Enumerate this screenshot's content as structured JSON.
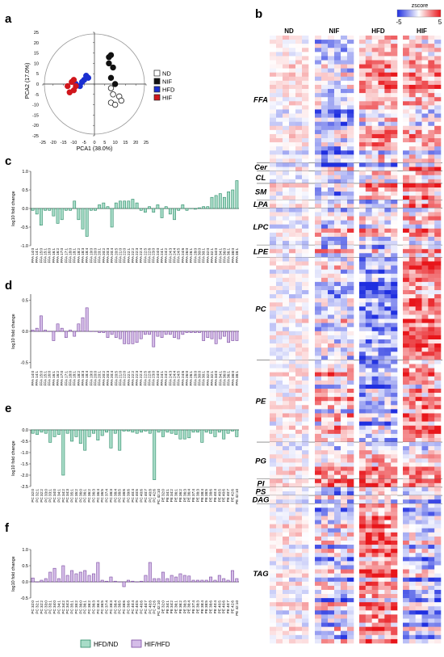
{
  "panel_letters": {
    "a": "a",
    "b": "b",
    "c": "c",
    "d": "d",
    "e": "e",
    "f": "f"
  },
  "colors": {
    "ND": "#ffffff",
    "NIF": "#111111",
    "HFD": "#1a2fd0",
    "HIF": "#d0161c",
    "green_fill": "#a8dcc8",
    "green_stroke": "#2a8a66",
    "purple_fill": "#d5bde8",
    "purple_stroke": "#7a4aa0",
    "heat_low": "#1f2fe0",
    "heat_mid": "#ffffff",
    "heat_high": "#e8161b"
  },
  "legend_bottom": {
    "green": "HFD/ND",
    "purple": "HIF/HFD"
  },
  "chart_data": [
    {
      "panel": "a",
      "type": "scatter",
      "xlabel": "PCA1 (38.0%)",
      "ylabel": "PCA2 (17.0%)",
      "xlim": [
        -25,
        25
      ],
      "ylim": [
        -25,
        25
      ],
      "xticks": [
        "-25",
        "-20",
        "-15",
        "-10",
        "-5",
        "0",
        "5",
        "10",
        "15",
        "20",
        "25"
      ],
      "yticks": [
        "25",
        "20",
        "15",
        "10",
        "5",
        "0",
        "-5",
        "-10",
        "-15",
        "-20",
        "-25"
      ],
      "legend": [
        "ND",
        "NIF",
        "HFD",
        "HIF"
      ],
      "series": [
        {
          "name": "ND",
          "points": [
            [
              8,
              -2
            ],
            [
              9,
              -5
            ],
            [
              12,
              -6
            ],
            [
              8,
              -9
            ],
            [
              10,
              -10
            ],
            [
              13,
              -8
            ]
          ]
        },
        {
          "name": "NIF",
          "points": [
            [
              7,
              13
            ],
            [
              8,
              14
            ],
            [
              7,
              10
            ],
            [
              9,
              8
            ],
            [
              8,
              3
            ],
            [
              10,
              0
            ]
          ]
        },
        {
          "name": "HFD",
          "points": [
            [
              -4,
              4
            ],
            [
              -5,
              2
            ],
            [
              -3,
              3
            ],
            [
              -7,
              -1
            ],
            [
              -6,
              1
            ],
            [
              -9,
              0
            ]
          ]
        },
        {
          "name": "HIF",
          "points": [
            [
              -13,
              -1
            ],
            [
              -11,
              1
            ],
            [
              -10,
              -3
            ],
            [
              -12,
              -4
            ],
            [
              -9,
              -1
            ],
            [
              -10,
              2
            ]
          ]
        }
      ]
    },
    {
      "panel": "b",
      "type": "heatmap",
      "title": "zscore",
      "scale_min": "-5",
      "scale_max": "5",
      "groups": [
        "ND",
        "NIF",
        "HFD",
        "HIF"
      ],
      "classes": [
        {
          "name": "FFA",
          "rows": 31
        },
        {
          "name": "Cer",
          "rows": 2
        },
        {
          "name": "CL",
          "rows": 3
        },
        {
          "name": "SM",
          "rows": 4
        },
        {
          "name": "LPA",
          "rows": 2
        },
        {
          "name": "LPC",
          "rows": 9
        },
        {
          "name": "LPE",
          "rows": 3
        },
        {
          "name": "PC",
          "rows": 25
        },
        {
          "name": "PE",
          "rows": 20
        },
        {
          "name": "PG",
          "rows": 9
        },
        {
          "name": "PI",
          "rows": 2
        },
        {
          "name": "PS",
          "rows": 2
        },
        {
          "name": "DAG",
          "rows": 2
        },
        {
          "name": "TAG",
          "rows": 34
        }
      ]
    },
    {
      "panel": "c",
      "type": "bar",
      "ylabel": "log10 fold change",
      "ylim": [
        -1.0,
        1.0
      ],
      "yticks": [
        "1.0",
        "0.5",
        "0.0",
        "-0.5",
        "-1.0"
      ],
      "categories": [
        "FFA 14:0",
        "FFA 14:1",
        "FFA 15:0",
        "FFA 15:1",
        "FFA 16:0",
        "FFA 16:1",
        "FFA 16:2",
        "FFA 17:0",
        "FFA 17:1",
        "FFA 18:0",
        "FFA 18:1",
        "FFA 18:2",
        "FFA 18:3",
        "FFA 18:4",
        "FFA 19:0",
        "FFA 20:0",
        "FFA 20:1",
        "FFA 20:2",
        "FFA 20:3",
        "FFA 20:4",
        "FFA 20:5",
        "FFA 21:0",
        "FFA 22:0",
        "FFA 22:1",
        "FFA 22:2",
        "FFA 22:3",
        "FFA 22:4",
        "FFA 22:5",
        "FFA 22:6",
        "FFA 23:0",
        "FFA 24:0",
        "FFA 24:1",
        "FFA 24:2",
        "FFA 24:3",
        "FFA 24:4",
        "FFA 24:5",
        "FFA 24:6",
        "FFA 26:0",
        "FFA 26:1",
        "FFA 28:0",
        "FFA 30:0",
        "FFA 30:1",
        "FFA 32:0",
        "FFA 32:1",
        "FFA 34:0",
        "FFA 34:1",
        "FFA 36:0",
        "FFA 36:1",
        "FFA 38:0",
        "FFA 38:1"
      ],
      "series": [
        {
          "name": "HFD/ND",
          "values": [
            -0.05,
            -0.15,
            -0.45,
            -0.05,
            -0.05,
            -0.2,
            -0.4,
            -0.3,
            -0.05,
            -0.05,
            0.2,
            -0.3,
            -0.55,
            -0.75,
            -0.05,
            -0.05,
            0.1,
            0.15,
            0.05,
            -0.5,
            0.15,
            0.2,
            0.2,
            0.2,
            0.25,
            0.15,
            -0.05,
            -0.1,
            0.05,
            -0.1,
            0.1,
            -0.25,
            0.05,
            -0.15,
            -0.3,
            -0.05,
            0.1,
            -0.05,
            0.0,
            -0.02,
            0.02,
            0.05,
            0.05,
            0.3,
            0.35,
            0.4,
            0.3,
            0.45,
            0.5,
            0.75
          ]
        }
      ]
    },
    {
      "panel": "d",
      "type": "bar",
      "ylabel": "log10 fold change",
      "ylim": [
        -0.6,
        0.6
      ],
      "yticks": [
        "0.5",
        "0.0",
        "-0.5"
      ],
      "categories": [
        "FFA 14:0",
        "FFA 14:1",
        "FFA 15:0",
        "FFA 15:1",
        "FFA 16:0",
        "FFA 16:1",
        "FFA 16:2",
        "FFA 17:0",
        "FFA 17:1",
        "FFA 18:0",
        "FFA 18:1",
        "FFA 18:2",
        "FFA 18:3",
        "FFA 18:4",
        "FFA 19:0",
        "FFA 20:0",
        "FFA 20:1",
        "FFA 20:2",
        "FFA 20:3",
        "FFA 20:4",
        "FFA 20:5",
        "FFA 21:0",
        "FFA 22:0",
        "FFA 22:1",
        "FFA 22:2",
        "FFA 22:3",
        "FFA 22:4",
        "FFA 22:5",
        "FFA 22:6",
        "FFA 23:0",
        "FFA 24:0",
        "FFA 24:1",
        "FFA 24:2",
        "FFA 24:3",
        "FFA 24:4",
        "FFA 24:5",
        "FFA 24:6",
        "FFA 26:0",
        "FFA 26:1",
        "FFA 28:0",
        "FFA 30:0",
        "FFA 30:1",
        "FFA 32:0",
        "FFA 32:1",
        "FFA 34:0",
        "FFA 34:1",
        "FFA 36:0",
        "FFA 36:1",
        "FFA 38:0",
        "FFA 38:1"
      ],
      "series": [
        {
          "name": "HIF/HFD",
          "values": [
            0.02,
            0.05,
            0.25,
            0.02,
            0.0,
            -0.15,
            0.12,
            0.05,
            -0.1,
            0.02,
            -0.08,
            0.12,
            0.22,
            0.38,
            0.0,
            0.0,
            -0.02,
            -0.02,
            -0.1,
            -0.05,
            -0.1,
            -0.12,
            -0.2,
            -0.2,
            -0.2,
            -0.18,
            -0.12,
            -0.05,
            -0.05,
            -0.25,
            -0.08,
            -0.1,
            -0.05,
            -0.05,
            -0.1,
            -0.12,
            -0.05,
            -0.02,
            -0.02,
            -0.02,
            -0.02,
            -0.15,
            -0.1,
            -0.12,
            -0.2,
            -0.12,
            -0.08,
            -0.18,
            -0.15,
            -0.15
          ]
        }
      ]
    },
    {
      "panel": "e",
      "type": "bar",
      "ylabel": "log10 fold change",
      "ylim": [
        -2.5,
        0.0
      ],
      "yticks": [
        "0.0",
        "-0.5",
        "-1.0",
        "-1.5",
        "-2.0",
        "-2.5"
      ],
      "categories": [
        "PC 32:0",
        "PC 32:1",
        "PC 32:2",
        "PC 33:0",
        "PC 33:1",
        "PC 34:0",
        "PC 34:1",
        "PC 34:2",
        "PC 34:3",
        "PC 35:1",
        "PC 35:2",
        "PC 36:0",
        "PC 36:1",
        "PC 36:2",
        "PC 36:3",
        "PC 36:4",
        "PC 36:5",
        "PC 37:4",
        "PC 38:3",
        "PC 38:4",
        "PC 38:5",
        "PC 38:6",
        "PC 39:6",
        "PC 40:4",
        "PC 40:5",
        "PC 40:6",
        "PC 40:7",
        "PC 40:8",
        "PC 42:6",
        "PC 42:10",
        "PE 32:0",
        "PE 34:1",
        "PE 34:2",
        "PE 36:1",
        "PE 36:2",
        "PE 36:3",
        "PE 36:4",
        "PE 37:4",
        "PE 38:3",
        "PE 38:4",
        "PE 38:5",
        "PE 38:6",
        "PE 40:4",
        "PE 40:5",
        "PE 40:6",
        "PE 40:7",
        "PE 42:6",
        "PE 42:10"
      ],
      "series": [
        {
          "name": "HFD/ND",
          "values": [
            -0.15,
            -0.2,
            -0.1,
            -0.15,
            -0.55,
            -0.3,
            -0.2,
            -2.0,
            -0.15,
            -0.5,
            -0.3,
            -0.6,
            -0.9,
            -0.3,
            -0.15,
            -0.45,
            -0.25,
            -0.1,
            -0.8,
            -0.15,
            -0.9,
            -0.05,
            -0.05,
            -0.1,
            -0.15,
            -0.1,
            -0.05,
            -0.15,
            -2.2,
            -0.1,
            -0.3,
            -0.1,
            -0.15,
            -0.2,
            -0.4,
            -0.4,
            -0.35,
            -0.1,
            -0.1,
            -0.55,
            -0.1,
            -0.15,
            -0.3,
            -0.1,
            -0.4,
            -0.15,
            -0.05,
            -0.3
          ]
        }
      ]
    },
    {
      "panel": "f",
      "type": "bar",
      "ylabel": "log10 fold change",
      "ylim": [
        -0.5,
        1.0
      ],
      "yticks": [
        "1.0",
        "0.5",
        "0.0",
        "-0.5"
      ],
      "categories": [
        "PC 32:0",
        "PC 32:1",
        "PC 32:2",
        "PC 33:0",
        "PC 33:1",
        "PC 34:0",
        "PC 34:1",
        "PC 34:2",
        "PC 34:3",
        "PC 35:1",
        "PC 35:2",
        "PC 36:0",
        "PC 36:1",
        "PC 36:2",
        "PC 36:3",
        "PC 36:4",
        "PC 36:5",
        "PC 37:4",
        "PC 38:3",
        "PC 38:4",
        "PC 38:5",
        "PC 38:6",
        "PC 39:6",
        "PC 40:4",
        "PC 40:5",
        "PC 40:6",
        "PC 40:7",
        "PC 40:8",
        "PC 42:6",
        "PC 42:10",
        "PE 32:0",
        "PE 34:1",
        "PE 34:2",
        "PE 36:1",
        "PE 36:2",
        "PE 36:3",
        "PE 36:4",
        "PE 37:4",
        "PE 38:3",
        "PE 38:4",
        "PE 38:5",
        "PE 38:6",
        "PE 40:4",
        "PE 40:5",
        "PE 40:6",
        "PE 40:7",
        "PE 42:6",
        "PE 42:10"
      ],
      "series": [
        {
          "name": "HIF/HFD",
          "values": [
            0.12,
            0.0,
            0.05,
            0.1,
            0.3,
            0.42,
            0.1,
            0.5,
            0.2,
            0.35,
            0.25,
            0.3,
            0.35,
            0.2,
            0.25,
            0.6,
            0.05,
            0.02,
            0.15,
            0.02,
            0.0,
            -0.15,
            0.05,
            0.02,
            0.0,
            0.02,
            0.2,
            0.6,
            0.1,
            0.1,
            0.3,
            0.1,
            0.2,
            0.15,
            0.25,
            0.2,
            0.18,
            0.05,
            0.05,
            0.05,
            0.05,
            0.15,
            0.05,
            0.2,
            0.1,
            0.05,
            0.35,
            0.1
          ]
        }
      ]
    }
  ]
}
